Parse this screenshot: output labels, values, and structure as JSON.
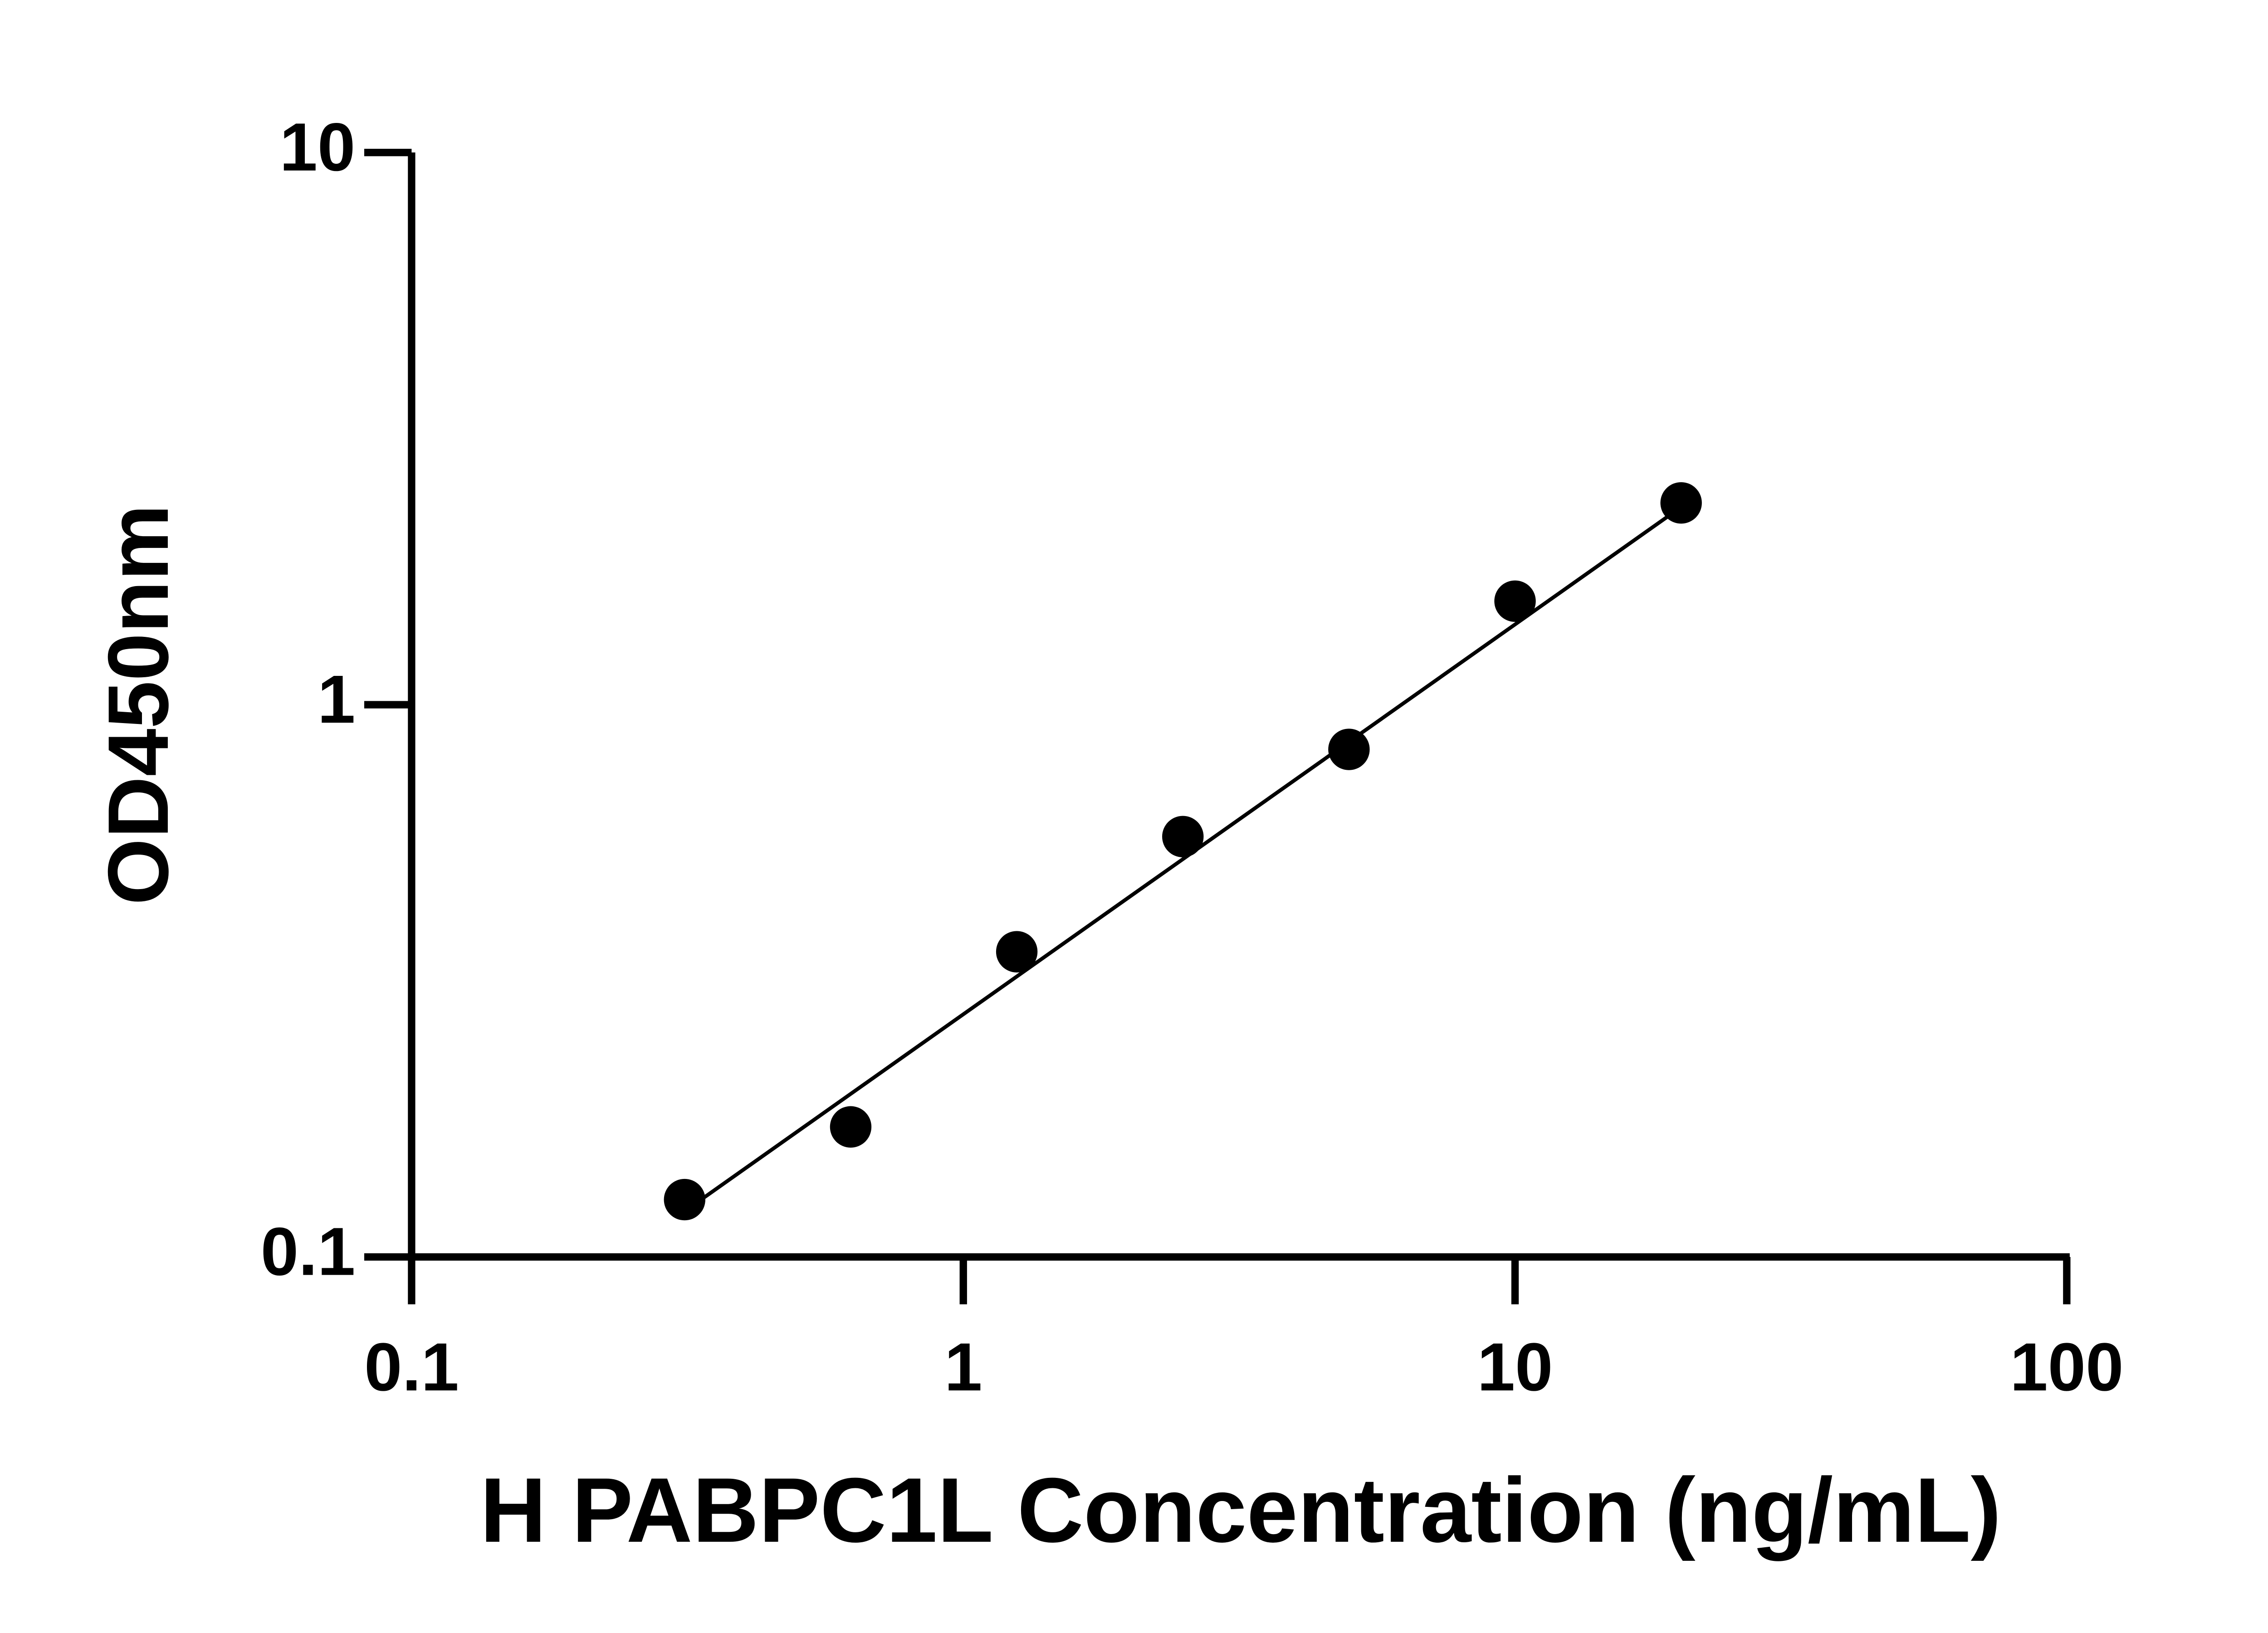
{
  "chart_data": {
    "type": "scatter",
    "xlabel": "H PABPC1L Concentration (ng/mL)",
    "ylabel": "OD450nm",
    "xscale": "log",
    "yscale": "log",
    "xlim": [
      0.1,
      100
    ],
    "xticks": [
      0.1,
      1,
      10,
      100
    ],
    "ylim": [
      0.1,
      10
    ],
    "yticks": [
      0.1,
      1,
      10
    ],
    "x": [
      0.3125,
      0.625,
      1.25,
      2.5,
      5,
      10,
      20
    ],
    "series": [
      {
        "color": "#000000",
        "values": [
          0.127,
          0.172,
          0.357,
          0.577,
          0.83,
          1.54,
          2.32
        ]
      }
    ],
    "fit_line": {
      "color": "#000000",
      "x": [
        0.3125,
        20
      ],
      "values": [
        0.121,
        2.28
      ]
    }
  }
}
